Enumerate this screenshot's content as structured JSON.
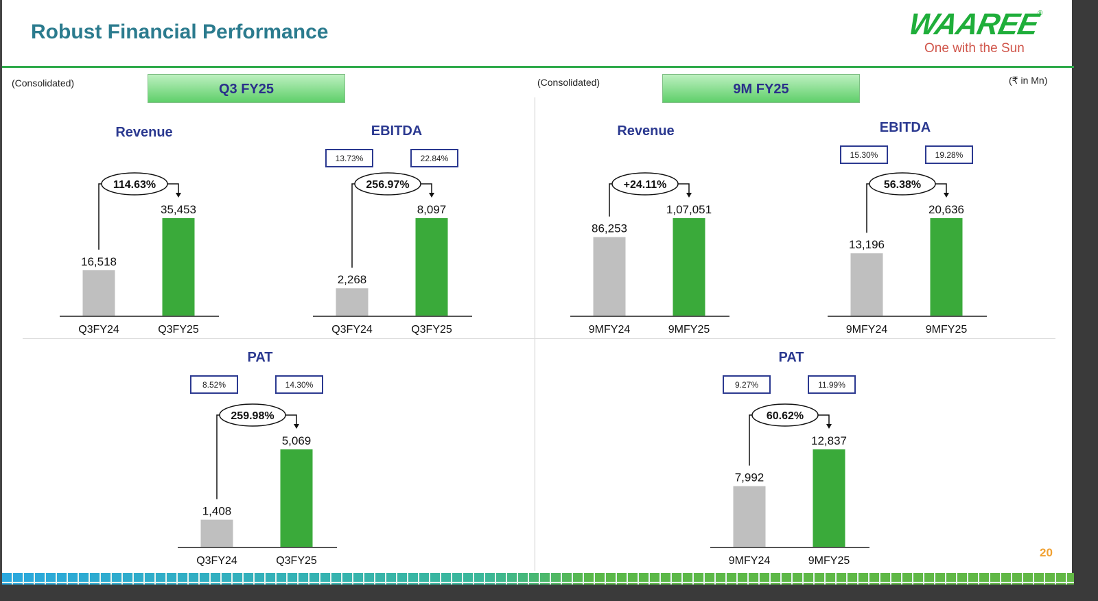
{
  "header": {
    "title": "Robust Financial Performance",
    "logo_text": "WAAREE",
    "logo_tagline": "One with the Sun"
  },
  "left_section": {
    "scope": "(Consolidated)",
    "banner": "Q3 FY25"
  },
  "right_section": {
    "scope": "(Consolidated)",
    "banner": "9M FY25",
    "unit": "(₹ in Mn)"
  },
  "page_number": "20",
  "colors": {
    "prior": "#bfbfbf",
    "current": "#3aaa3a",
    "title": "#2b3990",
    "header": "#2b7b8e"
  },
  "chart_data": [
    {
      "type": "bar",
      "title": "Revenue",
      "categories": [
        "Q3FY24",
        "Q3FY25"
      ],
      "values": [
        16518,
        35453
      ],
      "value_labels": [
        "16,518",
        "35,453"
      ],
      "growth": "114.63%",
      "margins": []
    },
    {
      "type": "bar",
      "title": "EBITDA",
      "categories": [
        "Q3FY24",
        "Q3FY25"
      ],
      "values": [
        2268,
        8097
      ],
      "value_labels": [
        "2,268",
        "8,097"
      ],
      "growth": "256.97%",
      "margins": [
        "13.73%",
        "22.84%"
      ]
    },
    {
      "type": "bar",
      "title": "Revenue",
      "categories": [
        "9MFY24",
        "9MFY25"
      ],
      "values": [
        86253,
        107051
      ],
      "value_labels": [
        "86,253",
        "1,07,051"
      ],
      "growth": "+24.11%",
      "margins": []
    },
    {
      "type": "bar",
      "title": "EBITDA",
      "categories": [
        "9MFY24",
        "9MFY25"
      ],
      "values": [
        13196,
        20636
      ],
      "value_labels": [
        "13,196",
        "20,636"
      ],
      "growth": "56.38%",
      "margins": [
        "15.30%",
        "19.28%"
      ]
    },
    {
      "type": "bar",
      "title": "PAT",
      "categories": [
        "Q3FY24",
        "Q3FY25"
      ],
      "values": [
        1408,
        5069
      ],
      "value_labels": [
        "1,408",
        "5,069"
      ],
      "growth": "259.98%",
      "margins": [
        "8.52%",
        "14.30%"
      ]
    },
    {
      "type": "bar",
      "title": "PAT",
      "categories": [
        "9MFY24",
        "9MFY25"
      ],
      "values": [
        7992,
        12837
      ],
      "value_labels": [
        "7,992",
        "12,837"
      ],
      "growth": "60.62%",
      "margins": [
        "9.27%",
        "11.99%"
      ]
    }
  ]
}
